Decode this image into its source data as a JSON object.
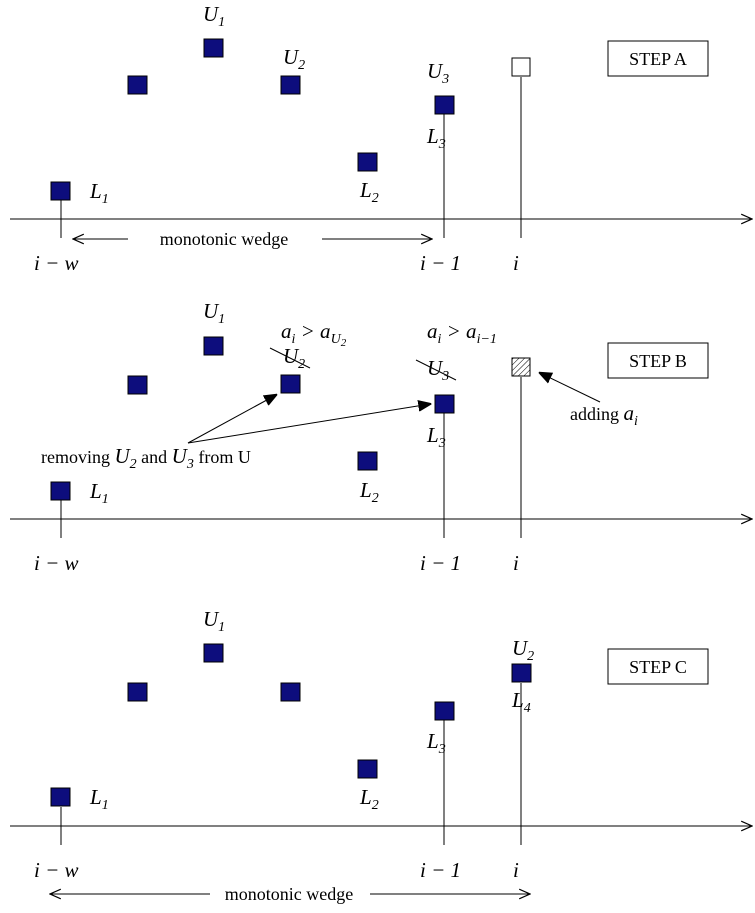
{
  "steps": {
    "a": {
      "label": "STEP A",
      "wedge_label": "monotonic wedge"
    },
    "b": {
      "label": "STEP B",
      "annot_ai_gt_au2": "a_i > a_{U_2}",
      "annot_ai_gt_aim1": "a_i > a_{i-1}",
      "adding_label": "adding a_i",
      "removing_label": "removing U_2 and U_3 from U"
    },
    "c": {
      "label": "STEP C",
      "wedge_label": "monotonic wedge"
    }
  },
  "text": {
    "monotonic_wedge": "monotonic wedge",
    "adding": "adding",
    "removing": "removing",
    "and": "and",
    "from_u": "from U",
    "step_a": "STEP A",
    "step_b": "STEP B",
    "step_c": "STEP C"
  },
  "colors": {
    "point_fill": "#0d0d7d",
    "line": "#000000",
    "background": "#ffffff"
  }
}
